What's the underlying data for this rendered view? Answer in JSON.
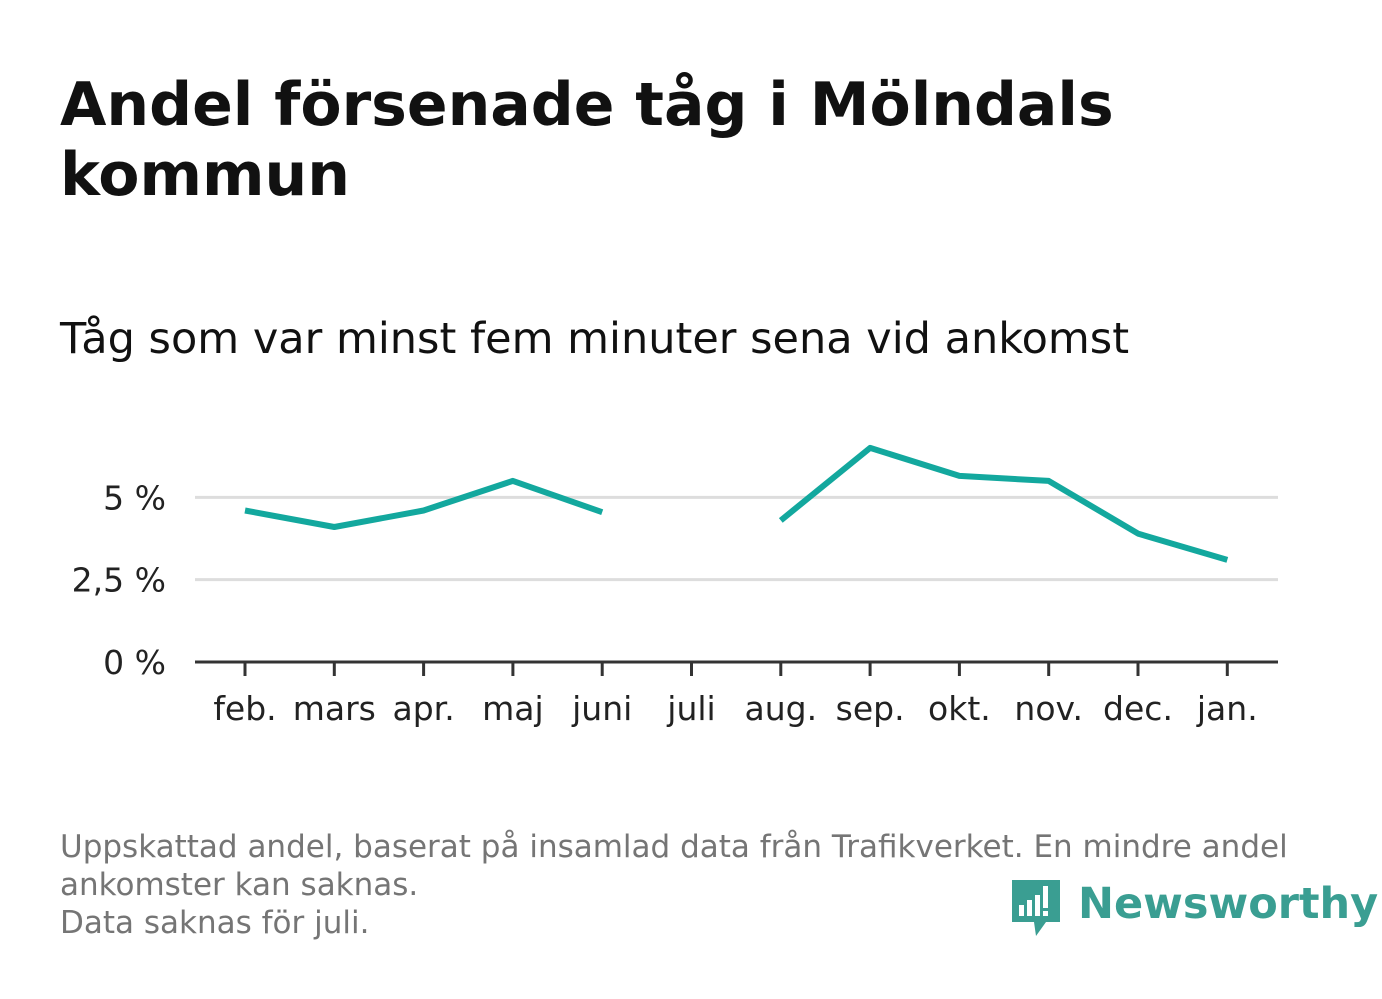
{
  "header": {
    "title": "Andel försenade tåg i Mölndals kommun",
    "subtitle": "Tåg som var minst fem minuter sena vid ankomst"
  },
  "chart_data": {
    "type": "line",
    "categories": [
      "feb.",
      "mars",
      "apr.",
      "maj",
      "juni",
      "juli",
      "aug.",
      "sep.",
      "okt.",
      "nov.",
      "dec.",
      "jan."
    ],
    "series": [
      {
        "values": [
          4.6,
          4.1,
          4.6,
          5.5,
          4.55,
          null,
          4.3,
          6.5,
          5.65,
          5.5,
          3.9,
          3.1
        ]
      }
    ],
    "yticks": [
      0,
      2.5,
      5
    ],
    "ytick_labels": [
      "0 %",
      "2,5 %",
      "5 %"
    ],
    "ylim": [
      0,
      7.5
    ],
    "xlabel": "",
    "ylabel": "",
    "grid": true,
    "legend": "none",
    "colors": {
      "line": "#13a89e",
      "grid": "#dddddd",
      "axis": "#333333"
    }
  },
  "footer": {
    "notes": [
      "Uppskattad andel, baserat på insamlad data från Trafikverket. En mindre andel",
      "ankomster kan saknas.",
      "Data saknas för juli."
    ],
    "brand": "Newsworthy",
    "brand_color": "#3a9e92",
    "logo_icon": "newsworthy-chart-icon"
  }
}
